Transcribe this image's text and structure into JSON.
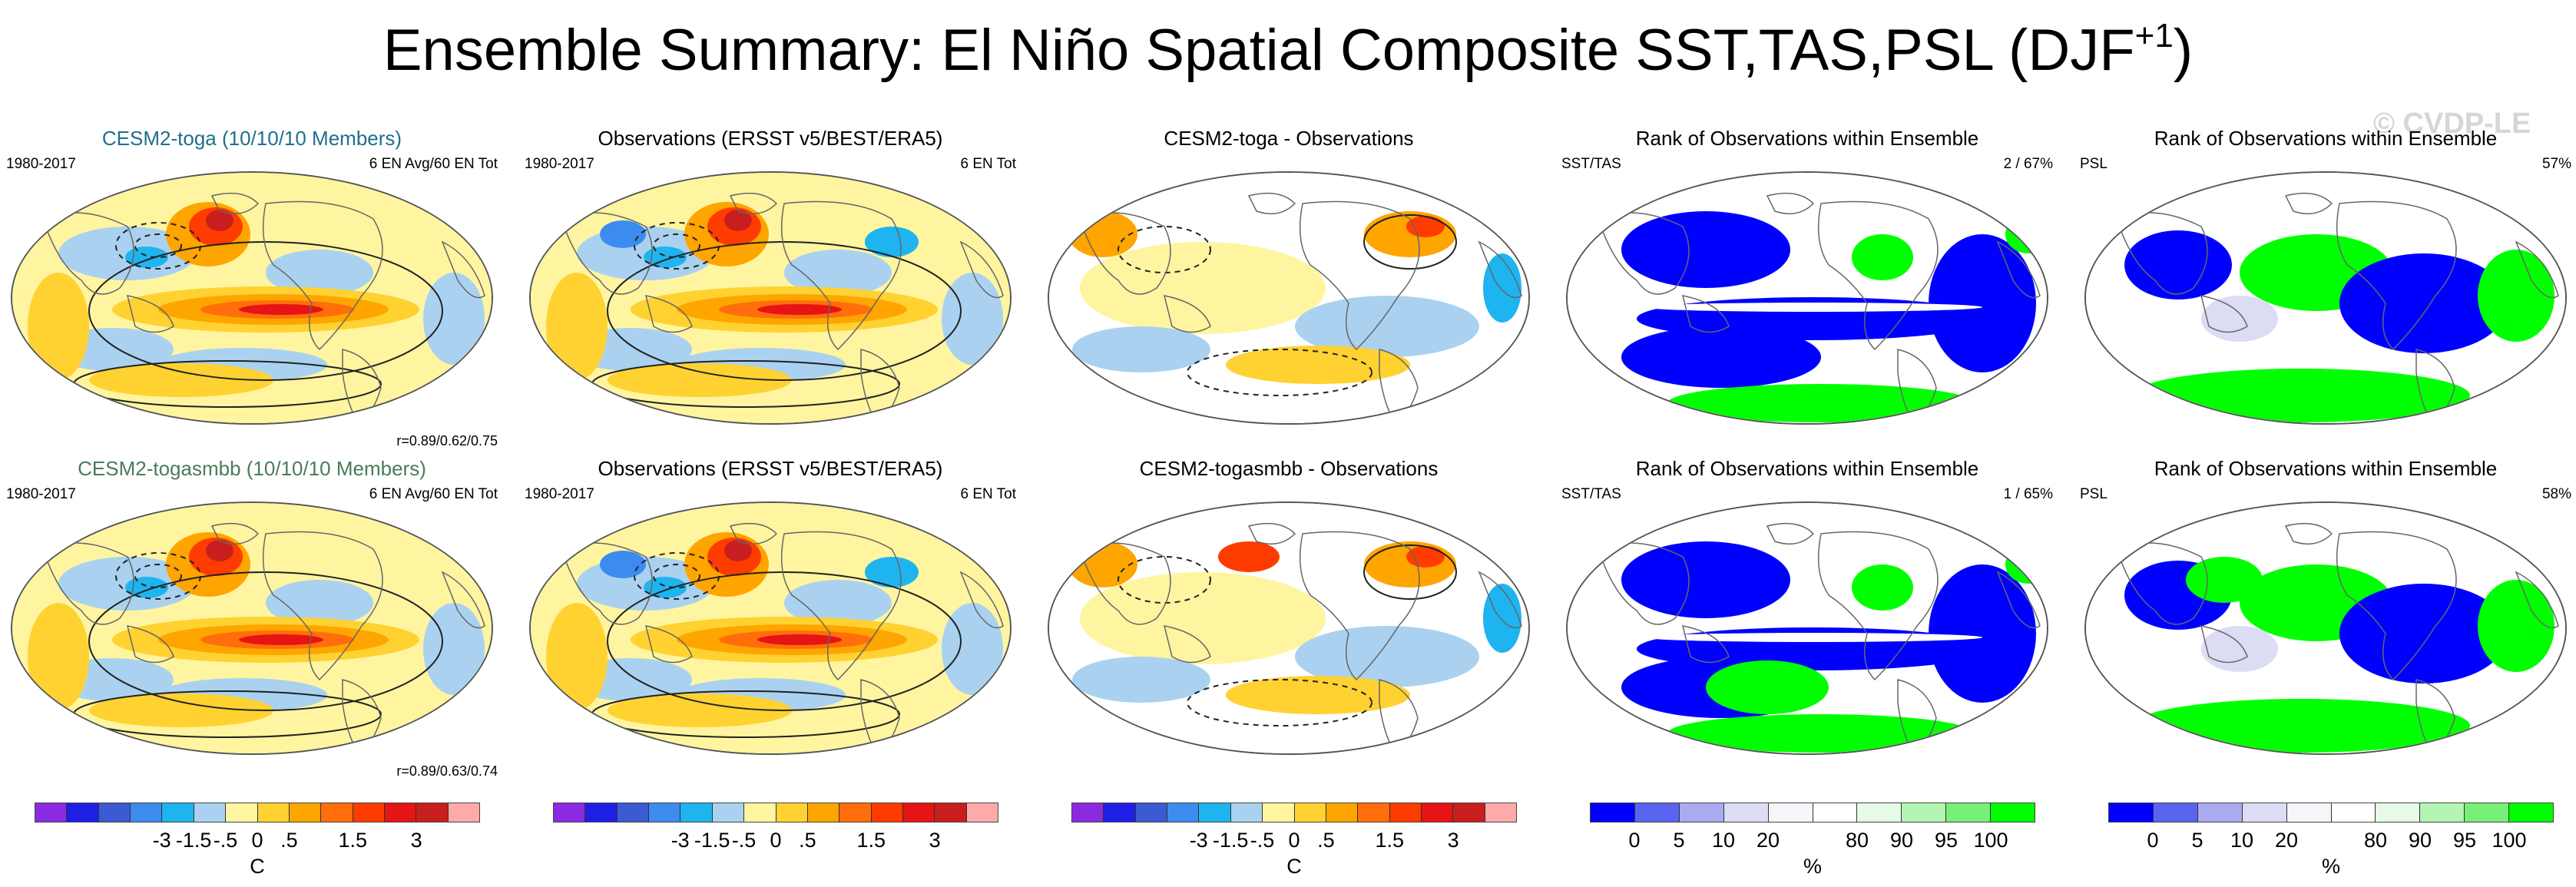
{
  "title": "Ensemble Summary: El Niño Spatial Composite SST,TAS,PSL (DJF",
  "title_sup": "+1",
  "title_close": ")",
  "watermark": "© CVDP-LE",
  "colors": {
    "anom": [
      "#8a2be2",
      "#1e1ee6",
      "#3c5ad2",
      "#3c8cf0",
      "#1eb4f0",
      "#aad2f0",
      "#fff5a0",
      "#ffd232",
      "#ffa500",
      "#ff6e0a",
      "#ff3c00",
      "#e61414",
      "#c81e1e",
      "#ffaaaa"
    ],
    "rank": [
      "#0000ff",
      "#5a64f0",
      "#aaaaf0",
      "#dcdcf5",
      "#f5f5fa",
      "#ffffff",
      "#e6fae6",
      "#b4f5b4",
      "#78f078",
      "#00ff00"
    ],
    "ocean": "#fff5a0",
    "land": "#ffffff"
  },
  "panels": [
    {
      "id": "p00",
      "kind": "anom",
      "title": "CESM2-toga (10/10/10 Members)",
      "title_color": "blue",
      "left_label": "1980-2017",
      "right_label": "6 EN Avg/60 EN Tot",
      "corr": "r=0.89/0.62/0.75"
    },
    {
      "id": "p01",
      "kind": "anom",
      "title": "Observations (ERSST v5/BEST/ERA5)",
      "title_color": "black",
      "left_label": "1980-2017",
      "right_label": "6 EN Tot",
      "corr": ""
    },
    {
      "id": "p02",
      "kind": "diff",
      "title": "CESM2-toga - Observations",
      "title_color": "black",
      "left_label": "",
      "right_label": "",
      "corr": ""
    },
    {
      "id": "p03",
      "kind": "rank_sst",
      "title": "Rank of Observations within Ensemble",
      "title_color": "black",
      "left_label": "SST/TAS",
      "right_label": "2 /  67%",
      "corr": ""
    },
    {
      "id": "p04",
      "kind": "rank_psl",
      "title": "Rank of Observations within Ensemble",
      "title_color": "black",
      "left_label": "PSL",
      "right_label": "57%",
      "corr": ""
    },
    {
      "id": "p10",
      "kind": "anom",
      "title": "CESM2-togasmbb (10/10/10 Members)",
      "title_color": "green",
      "left_label": "1980-2017",
      "right_label": "6 EN Avg/60 EN Tot",
      "corr": "r=0.89/0.63/0.74"
    },
    {
      "id": "p11",
      "kind": "anom",
      "title": "Observations (ERSST v5/BEST/ERA5)",
      "title_color": "black",
      "left_label": "1980-2017",
      "right_label": "6 EN Tot",
      "corr": ""
    },
    {
      "id": "p12",
      "kind": "diff",
      "title": "CESM2-togasmbb - Observations",
      "title_color": "black",
      "left_label": "",
      "right_label": "",
      "corr": ""
    },
    {
      "id": "p13",
      "kind": "rank_sst",
      "title": "Rank of Observations within Ensemble",
      "title_color": "black",
      "left_label": "SST/TAS",
      "right_label": "1 /  65%",
      "corr": ""
    },
    {
      "id": "p14",
      "kind": "rank_psl",
      "title": "Rank of Observations within Ensemble",
      "title_color": "black",
      "left_label": "PSL",
      "right_label": "58%",
      "corr": ""
    }
  ],
  "colorbars": [
    {
      "id": "cb0",
      "kind": "anom",
      "ticks": [
        "-3",
        "-1.5",
        "-.5",
        "0",
        ".5",
        "1.5",
        "3"
      ],
      "units": "C"
    },
    {
      "id": "cb1",
      "kind": "anom",
      "ticks": [
        "-3",
        "-1.5",
        "-.5",
        "0",
        ".5",
        "1.5",
        "3"
      ],
      "units": ""
    },
    {
      "id": "cb2",
      "kind": "anom",
      "ticks": [
        "-3",
        "-1.5",
        "-.5",
        "0",
        ".5",
        "1.5",
        "3"
      ],
      "units": "C"
    },
    {
      "id": "cb3",
      "kind": "rank",
      "ticks": [
        "0",
        "5",
        "10",
        "20",
        "80",
        "90",
        "95",
        "100"
      ],
      "units": "%"
    },
    {
      "id": "cb4",
      "kind": "rank",
      "ticks": [
        "0",
        "5",
        "10",
        "20",
        "80",
        "90",
        "95",
        "100"
      ],
      "units": "%"
    }
  ],
  "chart_data": [
    {
      "type": "heatmap",
      "title": "CESM2-toga (10/10/10 Members)",
      "variable": "SST,TAS,PSL",
      "period": "1980-2017",
      "note": "6 EN Avg/60 EN Tot",
      "pattern_correlation": "r=0.89/0.62/0.75",
      "levels": [
        -3,
        -1.5,
        -0.5,
        0,
        0.5,
        1.5,
        3
      ],
      "units": "C"
    },
    {
      "type": "heatmap",
      "title": "Observations (ERSST v5/BEST/ERA5)",
      "period": "1980-2017",
      "note": "6 EN Tot",
      "levels": [
        -3,
        -1.5,
        -0.5,
        0,
        0.5,
        1.5,
        3
      ],
      "units": "C"
    },
    {
      "type": "heatmap",
      "title": "CESM2-toga - Observations",
      "levels": [
        -3,
        -1.5,
        -0.5,
        0,
        0.5,
        1.5,
        3
      ],
      "units": "C"
    },
    {
      "type": "heatmap",
      "title": "Rank of Observations within Ensemble",
      "variable": "SST/TAS",
      "note": "2 /  67%",
      "levels": [
        0,
        5,
        10,
        20,
        80,
        90,
        95,
        100
      ],
      "units": "%"
    },
    {
      "type": "heatmap",
      "title": "Rank of Observations within Ensemble",
      "variable": "PSL",
      "note": "57%",
      "levels": [
        0,
        5,
        10,
        20,
        80,
        90,
        95,
        100
      ],
      "units": "%"
    },
    {
      "type": "heatmap",
      "title": "CESM2-togasmbb (10/10/10 Members)",
      "period": "1980-2017",
      "note": "6 EN Avg/60 EN Tot",
      "pattern_correlation": "r=0.89/0.63/0.74",
      "levels": [
        -3,
        -1.5,
        -0.5,
        0,
        0.5,
        1.5,
        3
      ],
      "units": "C"
    },
    {
      "type": "heatmap",
      "title": "Observations (ERSST v5/BEST/ERA5)",
      "period": "1980-2017",
      "note": "6 EN Tot",
      "levels": [
        -3,
        -1.5,
        -0.5,
        0,
        0.5,
        1.5,
        3
      ],
      "units": "C"
    },
    {
      "type": "heatmap",
      "title": "CESM2-togasmbb - Observations",
      "levels": [
        -3,
        -1.5,
        -0.5,
        0,
        0.5,
        1.5,
        3
      ],
      "units": "C"
    },
    {
      "type": "heatmap",
      "title": "Rank of Observations within Ensemble",
      "variable": "SST/TAS",
      "note": "1 /  65%",
      "levels": [
        0,
        5,
        10,
        20,
        80,
        90,
        95,
        100
      ],
      "units": "%"
    },
    {
      "type": "heatmap",
      "title": "Rank of Observations within Ensemble",
      "variable": "PSL",
      "note": "58%",
      "levels": [
        0,
        5,
        10,
        20,
        80,
        90,
        95,
        100
      ],
      "units": "%"
    }
  ]
}
